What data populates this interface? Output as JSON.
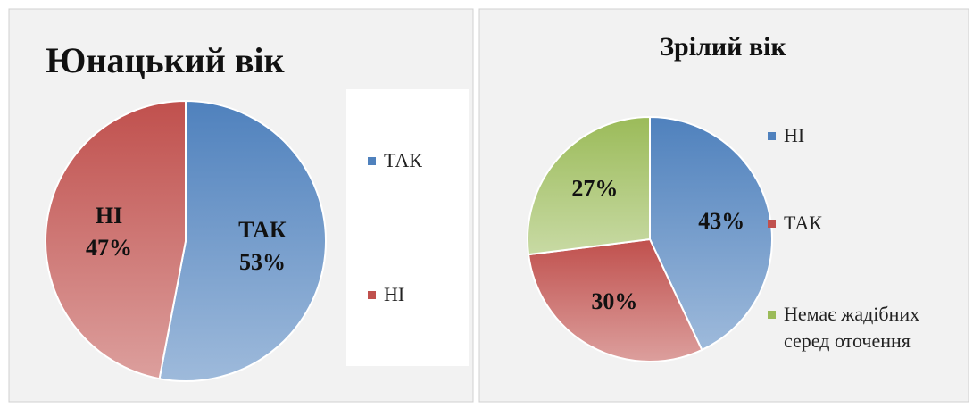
{
  "chart_data": [
    {
      "type": "pie",
      "title": "Юнацький вік",
      "categories": [
        "ТАК",
        "НІ"
      ],
      "values": [
        53,
        47
      ],
      "value_labels": [
        "53%",
        "47%"
      ],
      "colors": [
        "#4f81bd",
        "#c0504d"
      ],
      "legend": "right",
      "label_names": true
    },
    {
      "type": "pie",
      "title": "Зрілий вік",
      "categories": [
        "НІ",
        "ТАК",
        "Немає жадібних серед оточення"
      ],
      "values": [
        43,
        30,
        27
      ],
      "value_labels": [
        "43%",
        "30%",
        "27%"
      ],
      "colors": [
        "#4f81bd",
        "#c0504d",
        "#9bbb59"
      ],
      "legend": "right",
      "label_names": false
    }
  ]
}
